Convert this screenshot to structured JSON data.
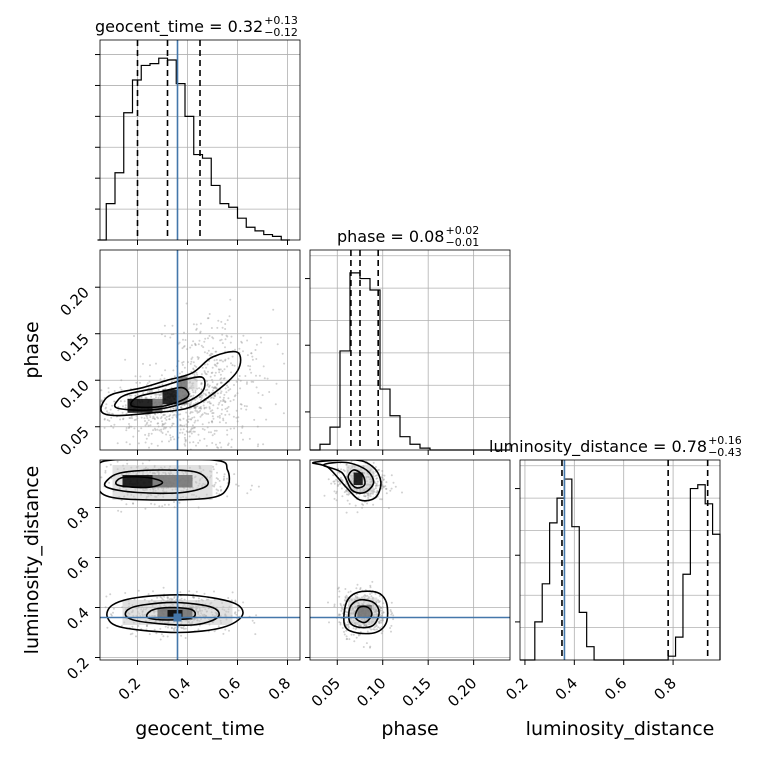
{
  "colors": {
    "truth": "#4477aa",
    "hist": "#000000",
    "grid": "#b0b0b0",
    "spine": "#000000",
    "scatter": "#9a9a9a",
    "density_dark": "#000000",
    "density_mid": "#6e6e6e",
    "density_light": "#c8c8c8"
  },
  "chart_data": {
    "type": "corner",
    "parameters": [
      {
        "name": "geocent_time",
        "axis_label": "geocent_time",
        "range": [
          0.05,
          0.85
        ],
        "ticks": [
          0.2,
          0.4,
          0.6,
          0.8
        ],
        "tick_labels": [
          "0.2",
          "0.4",
          "0.6",
          "0.8"
        ],
        "truth": 0.36,
        "quantiles": [
          0.2,
          0.32,
          0.45
        ],
        "title_main": "geocent_time = 0.32",
        "title_plus": "+0.13",
        "title_minus": "−0.12",
        "hist_bin_edges": [
          0.04,
          0.075,
          0.11,
          0.145,
          0.18,
          0.215,
          0.25,
          0.285,
          0.32,
          0.355,
          0.39,
          0.425,
          0.46,
          0.495,
          0.53,
          0.565,
          0.6,
          0.635,
          0.67,
          0.705,
          0.74,
          0.775,
          0.81
        ],
        "hist_counts": [
          0.0,
          0.2,
          0.37,
          0.7,
          0.88,
          0.96,
          0.97,
          1.0,
          0.99,
          0.86,
          0.68,
          0.47,
          0.45,
          0.3,
          0.2,
          0.18,
          0.12,
          0.07,
          0.05,
          0.03,
          0.02,
          0.0
        ],
        "hist_ylim": [
          0,
          1.1
        ]
      },
      {
        "name": "phase",
        "axis_label": "phase",
        "range": [
          0.02,
          0.24
        ],
        "ticks": [
          0.05,
          0.1,
          0.15,
          0.2
        ],
        "tick_labels": [
          "0.05",
          "0.10",
          "0.15",
          "0.20"
        ],
        "truth": null,
        "quantiles": [
          0.065,
          0.075,
          0.095
        ],
        "title_main": "phase = 0.08",
        "title_plus": "+0.02",
        "title_minus": "−0.01",
        "hist_bin_edges": [
          0.02,
          0.031,
          0.042,
          0.053,
          0.064,
          0.075,
          0.086,
          0.097,
          0.108,
          0.119,
          0.13,
          0.141,
          0.152,
          0.163,
          0.174,
          0.185,
          0.196,
          0.207,
          0.218,
          0.229,
          0.24
        ],
        "hist_counts": [
          0.0,
          0.03,
          0.12,
          0.52,
          0.93,
          0.9,
          0.84,
          0.32,
          0.18,
          0.07,
          0.03,
          0.01,
          0.0,
          0.0,
          0.0,
          0.0,
          0.0,
          0.0,
          0.0,
          0.0
        ],
        "hist_ylim": [
          0,
          1.05
        ]
      },
      {
        "name": "luminosity_distance",
        "axis_label": "luminosity_distance",
        "range": [
          0.18,
          0.99
        ],
        "ticks": [
          0.2,
          0.4,
          0.6,
          0.8
        ],
        "tick_labels": [
          "0.2",
          "0.4",
          "0.6",
          "0.8"
        ],
        "truth": 0.36,
        "quantiles": [
          0.35,
          0.78,
          0.94
        ],
        "title_main": "luminosity_distance = 0.78",
        "title_plus": "+0.16",
        "title_minus": "−0.43",
        "hist_bin_edges": [
          0.18,
          0.21,
          0.24,
          0.27,
          0.3,
          0.33,
          0.36,
          0.39,
          0.42,
          0.45,
          0.48,
          0.51,
          0.54,
          0.57,
          0.6,
          0.63,
          0.66,
          0.69,
          0.72,
          0.75,
          0.78,
          0.81,
          0.84,
          0.87,
          0.9,
          0.93,
          0.96,
          0.99
        ],
        "hist_counts": [
          0.0,
          0.0,
          0.2,
          0.4,
          0.72,
          0.85,
          0.95,
          0.7,
          0.25,
          0.07,
          0.0,
          0.0,
          0.0,
          0.0,
          0.0,
          0.0,
          0.0,
          0.0,
          0.0,
          0.0,
          0.02,
          0.12,
          0.45,
          0.9,
          0.92,
          0.82,
          0.66
        ],
        "hist_ylim": [
          0,
          1.05
        ]
      }
    ],
    "pair_panels": [
      {
        "x": "geocent_time",
        "y": "phase",
        "truth_point": [
          0.36,
          null
        ],
        "blobs": [
          {
            "cx": 0.3,
            "cy": 0.074,
            "sx": 0.14,
            "sy": 0.012,
            "n": 340
          },
          {
            "cx": 0.42,
            "cy": 0.09,
            "sx": 0.08,
            "sy": 0.014,
            "n": 150
          },
          {
            "cx": 0.5,
            "cy": 0.115,
            "sx": 0.12,
            "sy": 0.03,
            "n": 260
          },
          {
            "cx": 0.36,
            "cy": 0.05,
            "sx": 0.15,
            "sy": 0.02,
            "n": 260
          }
        ],
        "density_cells": [
          {
            "x": [
              0.16,
              0.26
            ],
            "y": [
              0.065,
              0.08
            ],
            "level": "dark"
          },
          {
            "x": [
              0.3,
              0.36
            ],
            "y": [
              0.074,
              0.09
            ],
            "level": "dark"
          },
          {
            "x": [
              0.36,
              0.4
            ],
            "y": [
              0.074,
              0.09
            ],
            "level": "mid"
          },
          {
            "x": [
              0.36,
              0.4
            ],
            "y": [
              0.09,
              0.104
            ],
            "level": "mid"
          },
          {
            "x": [
              0.4,
              0.44
            ],
            "y": [
              0.09,
              0.104
            ],
            "level": "light"
          },
          {
            "x": [
              0.26,
              0.3
            ],
            "y": [
              0.065,
              0.08
            ],
            "level": "mid"
          }
        ],
        "contours": [
          [
            [
              0.06,
              0.065
            ],
            [
              0.12,
              0.062
            ],
            [
              0.26,
              0.065
            ],
            [
              0.4,
              0.07
            ],
            [
              0.5,
              0.085
            ],
            [
              0.6,
              0.11
            ],
            [
              0.6,
              0.13
            ],
            [
              0.5,
              0.125
            ],
            [
              0.42,
              0.108
            ],
            [
              0.32,
              0.1
            ],
            [
              0.22,
              0.092
            ],
            [
              0.1,
              0.085
            ],
            [
              0.06,
              0.075
            ]
          ],
          [
            [
              0.12,
              0.07
            ],
            [
              0.25,
              0.068
            ],
            [
              0.38,
              0.075
            ],
            [
              0.46,
              0.088
            ],
            [
              0.46,
              0.103
            ],
            [
              0.38,
              0.1
            ],
            [
              0.28,
              0.092
            ],
            [
              0.16,
              0.085
            ],
            [
              0.12,
              0.078
            ]
          ],
          [
            [
              0.18,
              0.072
            ],
            [
              0.3,
              0.072
            ],
            [
              0.4,
              0.082
            ],
            [
              0.38,
              0.092
            ],
            [
              0.3,
              0.088
            ],
            [
              0.2,
              0.082
            ]
          ]
        ]
      },
      {
        "x": "geocent_time",
        "y": "luminosity_distance",
        "truth_point": [
          0.36,
          0.36
        ],
        "blobs": [
          {
            "cx": 0.3,
            "cy": 0.9,
            "sx": 0.13,
            "sy": 0.04,
            "n": 420
          },
          {
            "cx": 0.36,
            "cy": 0.38,
            "sx": 0.11,
            "sy": 0.04,
            "n": 520
          }
        ],
        "density_cells": [
          {
            "x": [
              0.14,
              0.26
            ],
            "y": [
              0.88,
              0.93
            ],
            "level": "dark"
          },
          {
            "x": [
              0.26,
              0.42
            ],
            "y": [
              0.88,
              0.93
            ],
            "level": "mid"
          },
          {
            "x": [
              0.1,
              0.5
            ],
            "y": [
              0.83,
              0.97
            ],
            "level": "light"
          },
          {
            "x": [
              0.28,
              0.42
            ],
            "y": [
              0.35,
              0.4
            ],
            "level": "mid"
          },
          {
            "x": [
              0.32,
              0.38
            ],
            "y": [
              0.36,
              0.39
            ],
            "level": "dark"
          },
          {
            "x": [
              0.14,
              0.58
            ],
            "y": [
              0.33,
              0.43
            ],
            "level": "light"
          }
        ],
        "contours": [
          [
            [
              0.04,
              0.88
            ],
            [
              0.1,
              0.84
            ],
            [
              0.3,
              0.83
            ],
            [
              0.5,
              0.84
            ],
            [
              0.56,
              0.88
            ],
            [
              0.56,
              0.95
            ],
            [
              0.5,
              0.99
            ],
            [
              0.1,
              0.99
            ],
            [
              0.04,
              0.95
            ]
          ],
          [
            [
              0.08,
              0.88
            ],
            [
              0.2,
              0.86
            ],
            [
              0.38,
              0.86
            ],
            [
              0.48,
              0.89
            ],
            [
              0.44,
              0.94
            ],
            [
              0.3,
              0.95
            ],
            [
              0.14,
              0.94
            ],
            [
              0.08,
              0.91
            ]
          ],
          [
            [
              0.12,
              0.89
            ],
            [
              0.24,
              0.88
            ],
            [
              0.3,
              0.9
            ],
            [
              0.24,
              0.92
            ],
            [
              0.14,
              0.92
            ]
          ],
          [
            [
              0.08,
              0.36
            ],
            [
              0.14,
              0.32
            ],
            [
              0.36,
              0.3
            ],
            [
              0.54,
              0.32
            ],
            [
              0.62,
              0.37
            ],
            [
              0.58,
              0.42
            ],
            [
              0.4,
              0.45
            ],
            [
              0.2,
              0.44
            ],
            [
              0.1,
              0.41
            ]
          ],
          [
            [
              0.16,
              0.36
            ],
            [
              0.24,
              0.34
            ],
            [
              0.42,
              0.33
            ],
            [
              0.52,
              0.36
            ],
            [
              0.5,
              0.4
            ],
            [
              0.36,
              0.42
            ],
            [
              0.22,
              0.41
            ],
            [
              0.16,
              0.39
            ]
          ],
          [
            [
              0.24,
              0.36
            ],
            [
              0.32,
              0.35
            ],
            [
              0.42,
              0.36
            ],
            [
              0.42,
              0.39
            ],
            [
              0.34,
              0.4
            ],
            [
              0.26,
              0.39
            ]
          ]
        ]
      },
      {
        "x": "phase",
        "y": "luminosity_distance",
        "truth_point": [
          null,
          0.36
        ],
        "blobs": [
          {
            "cx": 0.075,
            "cy": 0.9,
            "sx": 0.014,
            "sy": 0.04,
            "n": 380
          },
          {
            "cx": 0.078,
            "cy": 0.38,
            "sx": 0.013,
            "sy": 0.045,
            "n": 480
          }
        ],
        "density_cells": [
          {
            "x": [
              0.068,
              0.078
            ],
            "y": [
              0.89,
              0.94
            ],
            "level": "dark"
          },
          {
            "x": [
              0.06,
              0.09
            ],
            "y": [
              0.86,
              0.97
            ],
            "level": "light"
          },
          {
            "x": [
              0.072,
              0.088
            ],
            "y": [
              0.36,
              0.41
            ],
            "level": "mid"
          },
          {
            "x": [
              0.062,
              0.094
            ],
            "y": [
              0.33,
              0.44
            ],
            "level": "light"
          }
        ],
        "contours": [
          [
            [
              0.024,
              0.98
            ],
            [
              0.04,
              0.96
            ],
            [
              0.06,
              0.88
            ],
            [
              0.075,
              0.83
            ],
            [
              0.092,
              0.84
            ],
            [
              0.098,
              0.9
            ],
            [
              0.09,
              0.96
            ],
            [
              0.07,
              0.99
            ]
          ],
          [
            [
              0.035,
              0.97
            ],
            [
              0.055,
              0.94
            ],
            [
              0.066,
              0.87
            ],
            [
              0.08,
              0.86
            ],
            [
              0.09,
              0.9
            ],
            [
              0.082,
              0.95
            ],
            [
              0.06,
              0.98
            ]
          ],
          [
            [
              0.062,
              0.92
            ],
            [
              0.07,
              0.88
            ],
            [
              0.08,
              0.89
            ],
            [
              0.078,
              0.93
            ],
            [
              0.068,
              0.95
            ]
          ],
          [
            [
              0.058,
              0.33
            ],
            [
              0.07,
              0.3
            ],
            [
              0.092,
              0.3
            ],
            [
              0.104,
              0.34
            ],
            [
              0.104,
              0.42
            ],
            [
              0.094,
              0.46
            ],
            [
              0.072,
              0.46
            ],
            [
              0.06,
              0.42
            ]
          ],
          [
            [
              0.064,
              0.34
            ],
            [
              0.076,
              0.32
            ],
            [
              0.09,
              0.33
            ],
            [
              0.096,
              0.38
            ],
            [
              0.09,
              0.42
            ],
            [
              0.074,
              0.43
            ],
            [
              0.064,
              0.4
            ]
          ],
          [
            [
              0.07,
              0.36
            ],
            [
              0.08,
              0.34
            ],
            [
              0.088,
              0.37
            ],
            [
              0.084,
              0.4
            ],
            [
              0.074,
              0.4
            ]
          ]
        ]
      }
    ]
  }
}
